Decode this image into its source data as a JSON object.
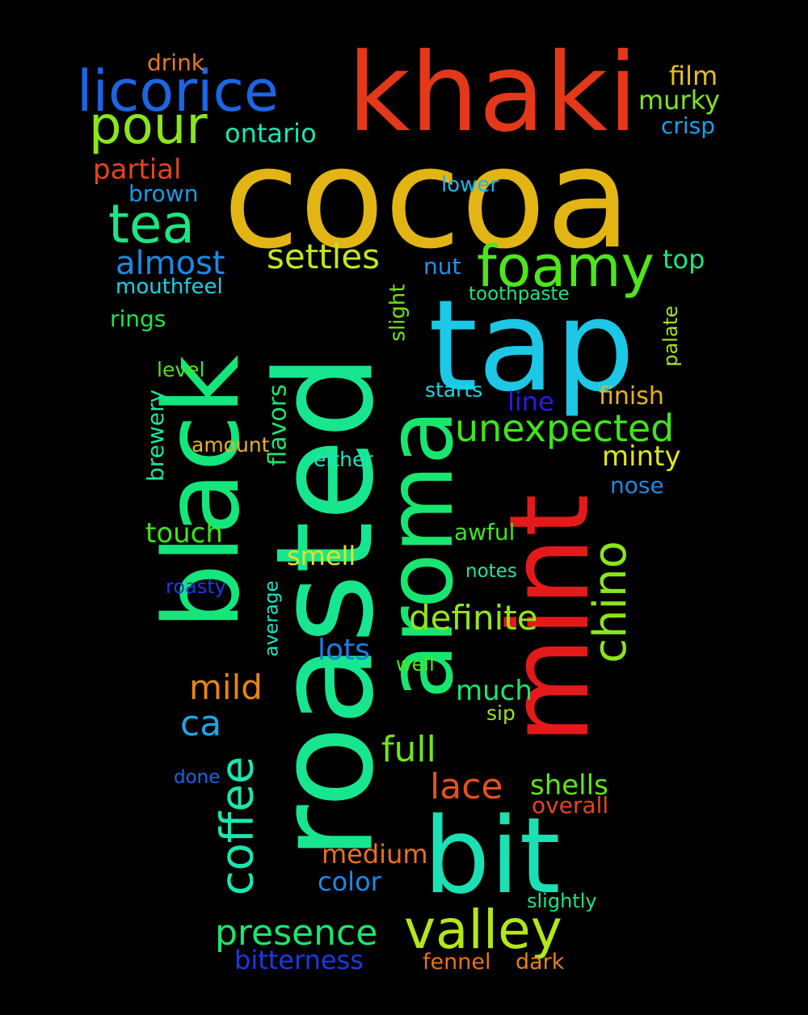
{
  "background": "#000000",
  "words": [
    {
      "text": "cocoa",
      "color": "#e2b514"
    },
    {
      "text": "roasted",
      "color": "#18e68f"
    },
    {
      "text": "tap",
      "color": "#1cc8e6"
    },
    {
      "text": "khaki",
      "color": "#e4381a"
    },
    {
      "text": "black",
      "color": "#13e67a"
    },
    {
      "text": "mint",
      "color": "#e41a1a"
    },
    {
      "text": "aroma",
      "color": "#18e66f"
    },
    {
      "text": "bit",
      "color": "#1be0b4"
    },
    {
      "text": "licorice",
      "color": "#1a66e4"
    },
    {
      "text": "foamy",
      "color": "#4ee61a"
    },
    {
      "text": "valley",
      "color": "#b4e61a"
    },
    {
      "text": "pour",
      "color": "#8ae61a"
    },
    {
      "text": "tea",
      "color": "#1ae683"
    },
    {
      "text": "chino",
      "color": "#8ae61a"
    },
    {
      "text": "coffee",
      "color": "#1ae6b0"
    },
    {
      "text": "unexpected",
      "color": "#3ee61a"
    },
    {
      "text": "presence",
      "color": "#1ae66e"
    },
    {
      "text": "definite",
      "color": "#94e61a"
    },
    {
      "text": "settles",
      "color": "#c6e61a"
    },
    {
      "text": "almost",
      "color": "#1a8ae6"
    },
    {
      "text": "lace",
      "color": "#e6511a"
    },
    {
      "text": "full",
      "color": "#6ee61a"
    },
    {
      "text": "mild",
      "color": "#e6851a"
    },
    {
      "text": "partial",
      "color": "#e6451a"
    },
    {
      "text": "ontario",
      "color": "#1ae6b5"
    },
    {
      "text": "murky",
      "color": "#7ee61a"
    },
    {
      "text": "film",
      "color": "#e6c01a"
    },
    {
      "text": "drink",
      "color": "#e67a1a"
    },
    {
      "text": "crisp",
      "color": "#1aa0e6"
    },
    {
      "text": "brown",
      "color": "#1a9ae6"
    },
    {
      "text": "lower",
      "color": "#1ab8e6"
    },
    {
      "text": "top",
      "color": "#1ae680"
    },
    {
      "text": "nut",
      "color": "#1a94e6"
    },
    {
      "text": "mouthfeel",
      "color": "#1ad2e6"
    },
    {
      "text": "toothpaste",
      "color": "#1ae67e"
    },
    {
      "text": "rings",
      "color": "#1ae64a"
    },
    {
      "text": "slight",
      "color": "#6ee61a"
    },
    {
      "text": "palate",
      "color": "#a6e61a"
    },
    {
      "text": "level",
      "color": "#48e61a"
    },
    {
      "text": "flavors",
      "color": "#1ae66e"
    },
    {
      "text": "starts",
      "color": "#1ad6e6"
    },
    {
      "text": "line",
      "color": "#2a1ae6"
    },
    {
      "text": "finish",
      "color": "#e6b41a"
    },
    {
      "text": "brewery",
      "color": "#1ae6a2"
    },
    {
      "text": "amount",
      "color": "#e6b41a"
    },
    {
      "text": "either",
      "color": "#1ae6c2"
    },
    {
      "text": "minty",
      "color": "#e0e61a"
    },
    {
      "text": "nose",
      "color": "#1a8ae6"
    },
    {
      "text": "touch",
      "color": "#3ee61a"
    },
    {
      "text": "smell",
      "color": "#e6e21a"
    },
    {
      "text": "awful",
      "color": "#3ee61a"
    },
    {
      "text": "roasty",
      "color": "#1a3ae6"
    },
    {
      "text": "notes",
      "color": "#1ae6a8"
    },
    {
      "text": "average",
      "color": "#1ae6c8"
    },
    {
      "text": "lots",
      "color": "#1a7ee6"
    },
    {
      "text": "well",
      "color": "#4ee61a"
    },
    {
      "text": "much",
      "color": "#1ae66e"
    },
    {
      "text": "ca",
      "color": "#1aa8e6"
    },
    {
      "text": "sip",
      "color": "#9ae61a"
    },
    {
      "text": "shells",
      "color": "#5ee61a"
    },
    {
      "text": "overall",
      "color": "#e6451a"
    },
    {
      "text": "done",
      "color": "#1a66e6"
    },
    {
      "text": "medium",
      "color": "#e6721a"
    },
    {
      "text": "color",
      "color": "#1a8ae6"
    },
    {
      "text": "slightly",
      "color": "#1ae680"
    },
    {
      "text": "bitterness",
      "color": "#1a3ae6"
    },
    {
      "text": "fennel",
      "color": "#e6721a"
    },
    {
      "text": "dark",
      "color": "#e6801a"
    }
  ]
}
